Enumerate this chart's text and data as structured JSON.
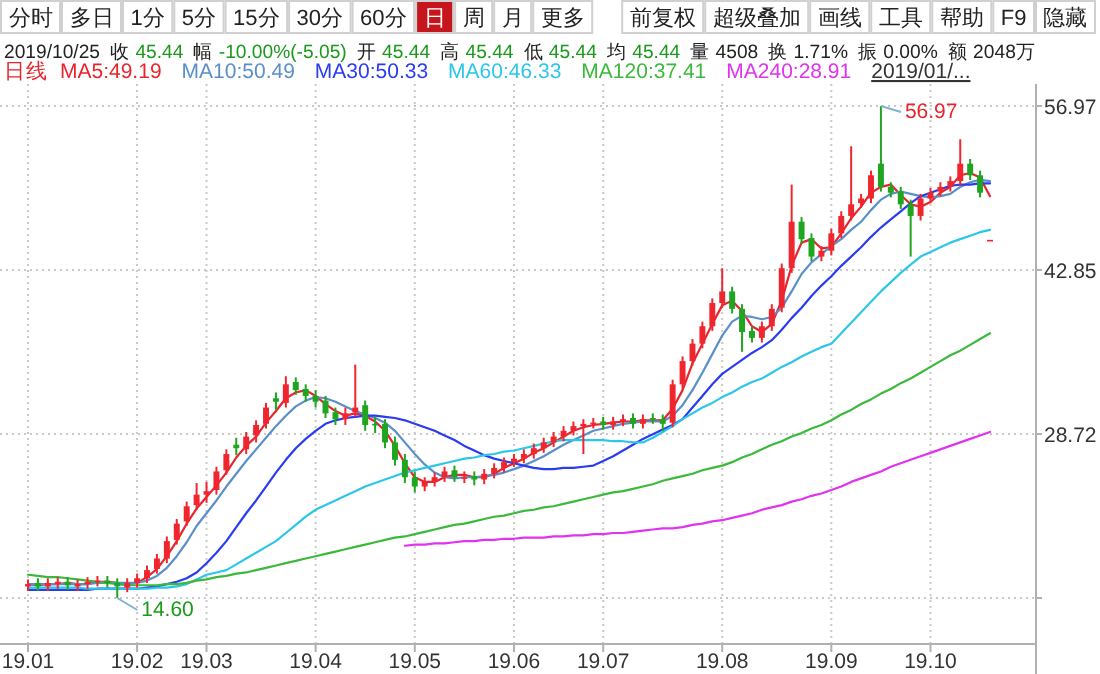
{
  "chart_data": {
    "type": "candlestick",
    "title": "日线",
    "categories": [
      "19.01",
      null,
      null,
      null,
      null,
      null,
      null,
      null,
      null,
      null,
      null,
      "19.02",
      null,
      null,
      null,
      null,
      null,
      null,
      "19.03",
      null,
      null,
      null,
      null,
      null,
      null,
      null,
      null,
      null,
      null,
      "19.04",
      null,
      null,
      null,
      null,
      null,
      null,
      null,
      null,
      null,
      "19.05",
      null,
      null,
      null,
      null,
      null,
      null,
      null,
      null,
      null,
      "19.06",
      null,
      null,
      null,
      null,
      null,
      null,
      null,
      null,
      "19.07",
      null,
      null,
      null,
      null,
      null,
      null,
      null,
      null,
      null,
      null,
      null,
      "19.08",
      null,
      null,
      null,
      null,
      null,
      null,
      null,
      null,
      null,
      null,
      "19.09",
      null,
      null,
      null,
      null,
      null,
      null,
      null,
      null,
      null,
      "19.10",
      null,
      null,
      null,
      null,
      null,
      null
    ],
    "ohlc": [
      [
        15.6,
        16.2,
        15.2,
        15.8
      ],
      [
        15.9,
        16.3,
        15.2,
        15.6
      ],
      [
        15.6,
        16.3,
        15.2,
        15.9
      ],
      [
        15.8,
        16.4,
        15.4,
        16.0
      ],
      [
        16.0,
        16.4,
        15.3,
        15.7
      ],
      [
        15.6,
        16.2,
        15.2,
        15.8
      ],
      [
        15.8,
        16.4,
        15.4,
        16.0
      ],
      [
        16.0,
        16.5,
        15.6,
        16.1
      ],
      [
        16.1,
        16.5,
        15.5,
        15.9
      ],
      [
        15.9,
        16.3,
        14.6,
        15.6
      ],
      [
        15.5,
        16.3,
        15.1,
        15.9
      ],
      [
        15.9,
        16.7,
        15.5,
        16.3
      ],
      [
        16.3,
        17.4,
        15.9,
        17.0
      ],
      [
        17.1,
        18.4,
        16.7,
        18.0
      ],
      [
        18.0,
        19.9,
        17.6,
        19.5
      ],
      [
        19.6,
        21.4,
        19.2,
        21.0
      ],
      [
        21.2,
        22.9,
        20.8,
        22.5
      ],
      [
        22.6,
        24.5,
        22.2,
        23.5
      ],
      [
        23.5,
        24.6,
        22.8,
        23.8
      ],
      [
        23.9,
        25.9,
        23.5,
        25.5
      ],
      [
        25.6,
        27.4,
        25.2,
        27.0
      ],
      [
        27.8,
        28.4,
        26.9,
        27.5
      ],
      [
        27.4,
        28.9,
        27.0,
        28.5
      ],
      [
        28.6,
        29.9,
        28.0,
        29.5
      ],
      [
        29.6,
        31.4,
        29.2,
        31.0
      ],
      [
        31.8,
        32.3,
        30.8,
        31.5
      ],
      [
        31.4,
        33.7,
        31.0,
        33.0
      ],
      [
        33.2,
        33.6,
        32.1,
        32.5
      ],
      [
        32.6,
        33.0,
        31.5,
        32.0
      ],
      [
        32.0,
        32.5,
        31.0,
        31.5
      ],
      [
        31.6,
        32.0,
        30.1,
        30.5
      ],
      [
        30.6,
        31.0,
        29.5,
        30.0
      ],
      [
        30.0,
        31.0,
        29.5,
        30.5
      ],
      [
        30.6,
        34.7,
        30.2,
        31.0
      ],
      [
        31.2,
        31.6,
        29.0,
        29.5
      ],
      [
        29.6,
        30.2,
        28.8,
        29.5
      ],
      [
        29.6,
        30.0,
        27.5,
        28.0
      ],
      [
        28.0,
        28.5,
        26.0,
        26.5
      ],
      [
        26.5,
        27.0,
        24.5,
        25.0
      ],
      [
        25.0,
        25.5,
        23.7,
        24.2
      ],
      [
        24.2,
        25.0,
        23.8,
        24.6
      ],
      [
        24.6,
        25.4,
        24.2,
        25.0
      ],
      [
        25.0,
        25.9,
        24.6,
        25.5
      ],
      [
        25.6,
        26.0,
        24.6,
        25.0
      ],
      [
        25.0,
        25.5,
        24.5,
        25.0
      ],
      [
        25.1,
        25.5,
        24.3,
        24.8
      ],
      [
        24.8,
        25.7,
        24.4,
        25.3
      ],
      [
        25.3,
        26.2,
        24.9,
        25.8
      ],
      [
        25.8,
        26.7,
        25.4,
        26.3
      ],
      [
        26.3,
        27.0,
        25.9,
        26.6
      ],
      [
        26.6,
        27.4,
        26.2,
        27.0
      ],
      [
        27.0,
        27.9,
        26.6,
        27.5
      ],
      [
        27.5,
        28.4,
        27.1,
        28.0
      ],
      [
        28.0,
        28.9,
        27.6,
        28.5
      ],
      [
        28.5,
        29.4,
        28.1,
        29.0
      ],
      [
        29.0,
        29.8,
        28.6,
        29.4
      ],
      [
        29.4,
        30.0,
        27.0,
        29.6
      ],
      [
        29.6,
        30.1,
        29.2,
        29.7
      ],
      [
        29.8,
        30.2,
        29.1,
        29.5
      ],
      [
        29.5,
        30.2,
        29.1,
        29.8
      ],
      [
        29.8,
        30.4,
        29.4,
        30.0
      ],
      [
        30.1,
        30.5,
        29.2,
        29.6
      ],
      [
        29.6,
        30.4,
        29.2,
        30.0
      ],
      [
        30.1,
        30.5,
        29.6,
        30.0
      ],
      [
        30.0,
        30.4,
        29.0,
        29.6
      ],
      [
        29.7,
        33.4,
        29.3,
        33.0
      ],
      [
        33.0,
        35.4,
        32.6,
        35.0
      ],
      [
        35.0,
        36.9,
        34.6,
        36.5
      ],
      [
        36.5,
        38.4,
        36.1,
        38.0
      ],
      [
        38.0,
        40.4,
        37.6,
        40.0
      ],
      [
        40.0,
        43.0,
        39.6,
        41.0
      ],
      [
        41.0,
        41.4,
        39.1,
        39.5
      ],
      [
        39.5,
        39.9,
        35.8,
        37.5
      ],
      [
        37.6,
        38.0,
        36.6,
        37.0
      ],
      [
        37.0,
        38.4,
        36.6,
        38.0
      ],
      [
        38.0,
        39.9,
        37.6,
        39.5
      ],
      [
        39.6,
        43.4,
        39.2,
        43.0
      ],
      [
        43.0,
        50.2,
        42.6,
        47.0
      ],
      [
        47.0,
        47.4,
        45.1,
        45.5
      ],
      [
        45.6,
        46.0,
        43.6,
        44.0
      ],
      [
        44.0,
        44.9,
        43.6,
        44.5
      ],
      [
        44.5,
        46.4,
        44.1,
        46.0
      ],
      [
        46.0,
        47.9,
        45.6,
        47.5
      ],
      [
        47.5,
        53.5,
        47.1,
        48.5
      ],
      [
        48.6,
        49.4,
        48.2,
        49.0
      ],
      [
        49.0,
        51.4,
        48.6,
        51.0
      ],
      [
        52.0,
        56.97,
        49.6,
        50.0
      ],
      [
        50.0,
        50.4,
        49.1,
        49.5
      ],
      [
        49.6,
        50.0,
        48.1,
        48.5
      ],
      [
        48.5,
        48.9,
        44.0,
        47.5
      ],
      [
        47.5,
        49.4,
        47.1,
        49.0
      ],
      [
        49.0,
        49.9,
        48.6,
        49.5
      ],
      [
        49.6,
        50.4,
        49.2,
        50.0
      ],
      [
        50.0,
        50.9,
        49.6,
        50.5
      ],
      [
        50.5,
        54.1,
        50.1,
        52.0
      ],
      [
        52.0,
        52.4,
        50.6,
        51.0
      ],
      [
        51.0,
        51.4,
        49.1,
        49.5
      ],
      [
        45.44,
        45.44,
        45.44,
        45.44
      ]
    ],
    "series": [
      {
        "name": "MA5:49.19",
        "type": "line",
        "color": "#e8242c",
        "values": [
          15.8,
          15.7,
          15.8,
          15.8,
          15.9,
          15.8,
          15.8,
          16.0,
          16.0,
          15.9,
          15.8,
          15.9,
          16.4,
          17.1,
          18.2,
          19.5,
          21.0,
          22.3,
          23.3,
          24.3,
          25.4,
          26.7,
          27.7,
          28.5,
          29.7,
          30.7,
          31.8,
          32.3,
          32.5,
          32.0,
          31.3,
          30.7,
          30.3,
          30.5,
          30.3,
          29.8,
          29.0,
          27.7,
          26.2,
          25.0,
          24.6,
          24.6,
          25.0,
          25.2,
          25.2,
          25.0,
          25.0,
          25.3,
          25.8,
          26.2,
          26.6,
          27.1,
          27.5,
          28.0,
          28.5,
          29.0,
          29.3,
          29.5,
          29.6,
          29.7,
          29.8,
          29.8,
          29.9,
          29.9,
          29.9,
          30.9,
          32.5,
          34.8,
          36.5,
          38.2,
          39.8,
          40.2,
          39.3,
          38.0,
          37.5,
          38.2,
          40.2,
          43.2,
          45.2,
          45.5,
          44.7,
          44.8,
          46.0,
          47.3,
          48.3,
          49.5,
          50.0,
          50.2,
          49.3,
          48.5,
          48.3,
          48.7,
          49.5,
          50.0,
          51.0,
          51.2,
          50.8,
          49.2
        ]
      },
      {
        "name": "MA10:50.49",
        "type": "line",
        "color": "#5b8fc9",
        "values": [
          15.8,
          15.8,
          15.8,
          15.8,
          15.8,
          15.8,
          15.8,
          15.9,
          15.9,
          15.9,
          15.9,
          15.9,
          16.1,
          16.5,
          17.2,
          18.2,
          19.4,
          20.8,
          21.9,
          23.0,
          24.2,
          25.3,
          26.4,
          27.4,
          28.4,
          29.4,
          30.3,
          31.1,
          31.6,
          31.9,
          31.8,
          31.5,
          31.1,
          30.7,
          30.4,
          30.1,
          29.7,
          29.0,
          28.0,
          27.0,
          26.1,
          25.4,
          25.0,
          24.9,
          25.0,
          25.0,
          25.1,
          25.2,
          25.4,
          25.7,
          26.0,
          26.4,
          26.8,
          27.3,
          27.8,
          28.2,
          28.6,
          29.0,
          29.2,
          29.4,
          29.6,
          29.7,
          29.8,
          29.8,
          29.8,
          30.3,
          31.2,
          32.5,
          34.0,
          35.6,
          37.2,
          38.4,
          38.9,
          38.8,
          38.6,
          38.8,
          39.6,
          41.0,
          42.5,
          43.5,
          44.2,
          44.9,
          45.5,
          46.3,
          47.0,
          48.0,
          48.9,
          49.4,
          49.6,
          49.4,
          49.2,
          49.1,
          49.2,
          49.4,
          50.0,
          50.4,
          50.6,
          50.5
        ]
      },
      {
        "name": "MA30:50.33",
        "type": "line",
        "color": "#2a3cf0",
        "values": [
          15.3,
          15.3,
          15.3,
          15.3,
          15.3,
          15.3,
          15.3,
          15.4,
          15.4,
          15.4,
          15.4,
          15.4,
          15.5,
          15.6,
          15.8,
          16.0,
          16.3,
          16.8,
          17.6,
          18.5,
          19.5,
          20.7,
          21.9,
          23.0,
          24.2,
          25.4,
          26.5,
          27.5,
          28.3,
          29.0,
          29.6,
          29.9,
          30.1,
          30.2,
          30.3,
          30.3,
          30.2,
          30.1,
          29.9,
          29.6,
          29.3,
          29.0,
          28.6,
          28.2,
          27.7,
          27.3,
          26.9,
          26.6,
          26.4,
          26.2,
          26.0,
          25.8,
          25.7,
          25.7,
          25.8,
          25.8,
          25.9,
          26.0,
          26.4,
          26.8,
          27.3,
          27.8,
          28.3,
          28.7,
          29.1,
          29.5,
          30.0,
          31.0,
          32.0,
          33.0,
          33.9,
          34.5,
          35.1,
          35.7,
          36.2,
          36.8,
          37.7,
          38.7,
          39.6,
          40.6,
          41.5,
          42.3,
          43.2,
          44.0,
          44.8,
          45.7,
          46.5,
          47.2,
          47.9,
          48.6,
          49.2,
          49.5,
          49.8,
          50.1,
          50.2,
          50.2,
          50.3,
          50.3
        ]
      },
      {
        "name": "MA60:46.33",
        "type": "line",
        "color": "#2cc6e8",
        "values": [
          15.5,
          15.5,
          15.5,
          15.5,
          15.5,
          15.5,
          15.4,
          15.4,
          15.4,
          15.4,
          15.4,
          15.4,
          15.4,
          15.5,
          15.5,
          15.6,
          15.8,
          16.2,
          16.6,
          16.8,
          17.0,
          17.5,
          18.0,
          18.5,
          19.0,
          19.5,
          20.2,
          20.9,
          21.6,
          22.2,
          22.6,
          23.0,
          23.4,
          23.8,
          24.2,
          24.5,
          24.8,
          25.1,
          25.4,
          25.6,
          25.8,
          26.0,
          26.2,
          26.4,
          26.6,
          26.7,
          26.9,
          27.0,
          27.2,
          27.3,
          27.5,
          27.7,
          27.9,
          28.1,
          28.2,
          28.2,
          28.2,
          28.2,
          28.2,
          28.1,
          28.1,
          28.0,
          28.0,
          28.4,
          28.9,
          29.4,
          30.0,
          30.5,
          31.0,
          31.4,
          31.9,
          32.3,
          32.8,
          33.2,
          33.5,
          34.0,
          34.5,
          34.9,
          35.4,
          35.8,
          36.2,
          36.5,
          37.4,
          38.3,
          39.2,
          40.1,
          41.0,
          41.8,
          42.6,
          43.3,
          44.0,
          44.4,
          44.8,
          45.2,
          45.5,
          45.8,
          46.1,
          46.3
        ]
      },
      {
        "name": "MA120:37.41",
        "type": "line",
        "color": "#3cb93c",
        "values": [
          16.6,
          16.5,
          16.4,
          16.4,
          16.3,
          16.2,
          16.1,
          16.0,
          15.9,
          15.8,
          15.7,
          15.7,
          15.7,
          15.7,
          15.8,
          15.8,
          15.9,
          16.1,
          16.2,
          16.4,
          16.5,
          16.7,
          16.8,
          17.0,
          17.2,
          17.4,
          17.6,
          17.8,
          18.0,
          18.2,
          18.4,
          18.6,
          18.8,
          19.0,
          19.2,
          19.4,
          19.6,
          19.8,
          19.9,
          20.1,
          20.3,
          20.5,
          20.7,
          20.9,
          21.0,
          21.2,
          21.4,
          21.6,
          21.7,
          21.9,
          22.1,
          22.2,
          22.4,
          22.5,
          22.7,
          22.9,
          23.1,
          23.3,
          23.5,
          23.7,
          23.8,
          24.0,
          24.2,
          24.4,
          24.7,
          24.9,
          25.1,
          25.3,
          25.6,
          25.8,
          26.0,
          26.3,
          26.7,
          27.0,
          27.4,
          27.8,
          28.1,
          28.5,
          28.8,
          29.2,
          29.5,
          29.9,
          30.4,
          30.8,
          31.3,
          31.7,
          32.2,
          32.6,
          33.1,
          33.5,
          34.0,
          34.5,
          35.0,
          35.5,
          35.9,
          36.4,
          36.9,
          37.4
        ]
      },
      {
        "name": "MA240:28.91",
        "type": "line",
        "color": "#e033ee",
        "values": [
          null,
          null,
          null,
          null,
          null,
          null,
          null,
          null,
          null,
          null,
          null,
          null,
          null,
          null,
          null,
          null,
          null,
          null,
          null,
          null,
          null,
          null,
          null,
          null,
          null,
          null,
          null,
          null,
          null,
          null,
          null,
          null,
          null,
          null,
          null,
          null,
          null,
          null,
          19.1,
          19.2,
          19.2,
          19.3,
          19.3,
          19.4,
          19.5,
          19.5,
          19.6,
          19.6,
          19.7,
          19.7,
          19.8,
          19.8,
          19.8,
          19.9,
          19.9,
          20.0,
          20.0,
          20.1,
          20.1,
          20.2,
          20.2,
          20.3,
          20.4,
          20.5,
          20.6,
          20.6,
          20.7,
          20.9,
          21.0,
          21.2,
          21.3,
          21.5,
          21.7,
          21.9,
          22.2,
          22.4,
          22.6,
          22.9,
          23.1,
          23.4,
          23.6,
          23.9,
          24.2,
          24.6,
          24.9,
          25.2,
          25.5,
          25.9,
          26.2,
          26.5,
          26.8,
          27.1,
          27.4,
          27.7,
          28.0,
          28.3,
          28.6,
          28.9
        ]
      }
    ],
    "ylim": [
      10.64,
      58.86
    ],
    "yticks": [
      {
        "value": 14.6,
        "label": null
      },
      28.72,
      42.85,
      56.97
    ],
    "grid": true,
    "legend": "top left",
    "annotations": [
      "分时",
      "多日",
      "1分",
      "5分",
      "15分",
      "30分",
      "60分",
      "日",
      "周",
      "月",
      "更多",
      "前复权",
      "超级叠加",
      "画线",
      "工具",
      "帮助",
      "F9",
      "隐藏",
      "2019/10/25",
      "收 45.44",
      "幅 -10.00%(-5.05)",
      "开 45.44",
      "高 45.44",
      "低 45.44",
      "均 45.44",
      "量 4508",
      "换 1.71%",
      "振 0.00%",
      "额 2048万",
      "2019/01/...",
      "56.97",
      "14.60"
    ]
  }
}
